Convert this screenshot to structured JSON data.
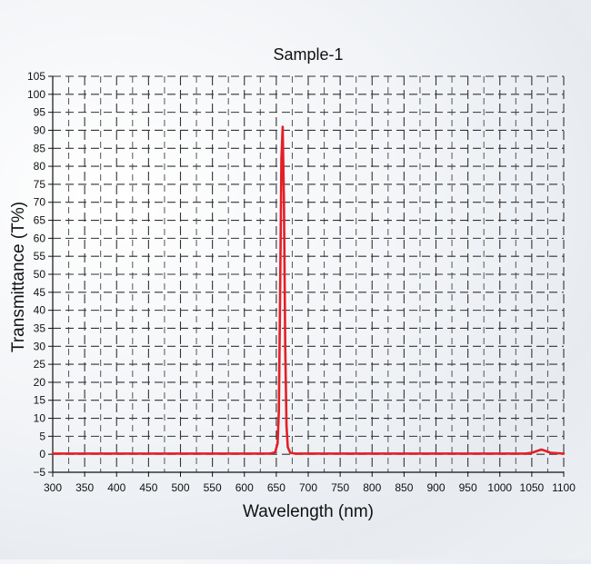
{
  "chart_data": {
    "type": "line",
    "title": "Sample-1",
    "xlabel": "Wavelength (nm)",
    "ylabel": "Transmittance (T%)",
    "xlim": [
      300,
      1100
    ],
    "ylim": [
      -5,
      105
    ],
    "xticks": [
      300,
      350,
      400,
      450,
      500,
      550,
      600,
      650,
      700,
      750,
      800,
      850,
      900,
      950,
      1000,
      1050,
      1100
    ],
    "yticks": [
      -5,
      0,
      5,
      10,
      15,
      20,
      25,
      30,
      35,
      40,
      45,
      50,
      55,
      60,
      65,
      70,
      75,
      80,
      85,
      90,
      95,
      100,
      105
    ],
    "grid": true,
    "series": [
      {
        "color": "#e41f26",
        "x": [
          300,
          400,
          500,
          600,
          640,
          648,
          652,
          654,
          656,
          658,
          660,
          662,
          664,
          666,
          668,
          672,
          680,
          700,
          800,
          900,
          1000,
          1040,
          1050,
          1058,
          1065,
          1072,
          1080,
          1090,
          1100
        ],
        "y": [
          0.2,
          0.2,
          0.2,
          0.2,
          0.2,
          0.5,
          3,
          12,
          45,
          82,
          91,
          70,
          30,
          8,
          2,
          0.4,
          0.2,
          0.2,
          0.2,
          0.2,
          0.2,
          0.2,
          0.4,
          0.9,
          1.3,
          0.9,
          0.4,
          0.3,
          0.2
        ]
      }
    ]
  }
}
